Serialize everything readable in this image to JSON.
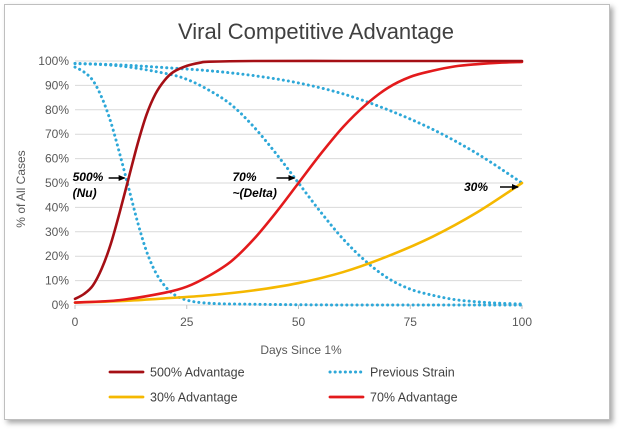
{
  "chart_data": {
    "type": "line",
    "title": "Viral Competitive Advantage",
    "xlabel": "Days Since 1%",
    "ylabel": "% of All Cases",
    "xlim": [
      0,
      100
    ],
    "ylim": [
      0,
      100
    ],
    "x_ticks": [
      0,
      25,
      50,
      75,
      100
    ],
    "x_tick_labels": [
      "0",
      "25",
      "50",
      "75",
      "100"
    ],
    "y_ticks": [
      0,
      10,
      20,
      30,
      40,
      50,
      60,
      70,
      80,
      90,
      100
    ],
    "y_tick_labels": [
      "0%",
      "10%",
      "20%",
      "30%",
      "40%",
      "50%",
      "60%",
      "70%",
      "80%",
      "90%",
      "100%"
    ],
    "grid": "horizontal",
    "legend_position": "bottom",
    "series": [
      {
        "name": "500% Advantage",
        "color": "#a50f15",
        "style": "solid",
        "x": [
          0,
          2,
          4,
          6,
          8,
          10,
          12,
          14,
          16,
          18,
          20,
          22,
          25,
          28,
          30,
          40,
          60,
          80,
          100
        ],
        "y": [
          2.5,
          4.5,
          8,
          15,
          25,
          38,
          52,
          66,
          78,
          86.5,
          92,
          95.5,
          98,
          99.3,
          99.7,
          100,
          100,
          100,
          100
        ]
      },
      {
        "name": "Previous Strain",
        "color": "#2ea8d8",
        "style": "dotted",
        "x": [
          0,
          2,
          4,
          6,
          8,
          10,
          12,
          14,
          16,
          18,
          20,
          22,
          25,
          30,
          40,
          60,
          80,
          100
        ],
        "y": [
          97.5,
          95.5,
          92,
          85,
          75,
          62,
          48,
          34,
          22,
          13.5,
          8,
          4.5,
          2,
          0.7,
          0.3,
          0,
          0,
          0
        ]
      },
      {
        "name": "Previous Strain",
        "color": "#2ea8d8",
        "style": "dotted",
        "x": [
          0,
          10,
          20,
          25,
          30,
          35,
          40,
          45,
          50,
          55,
          60,
          65,
          70,
          75,
          80,
          85,
          90,
          95,
          100
        ],
        "y": [
          99,
          98,
          95,
          92.5,
          88,
          82,
          73,
          62,
          50,
          38,
          27,
          18,
          11,
          6.5,
          4,
          2.2,
          1.3,
          0.7,
          0.4
        ]
      },
      {
        "name": "Previous Strain",
        "color": "#2ea8d8",
        "style": "dotted",
        "x": [
          0,
          10,
          20,
          30,
          40,
          50,
          60,
          70,
          80,
          90,
          100
        ],
        "y": [
          99,
          98.4,
          97.3,
          96,
          94,
          91,
          86.5,
          80,
          72,
          62,
          50
        ]
      },
      {
        "name": "70% Advantage",
        "color": "#e31a1c",
        "style": "solid",
        "x": [
          0,
          10,
          20,
          25,
          30,
          35,
          40,
          45,
          50,
          55,
          60,
          65,
          70,
          75,
          80,
          85,
          90,
          95,
          100
        ],
        "y": [
          1,
          2,
          5,
          7.5,
          12,
          18,
          27,
          38,
          50,
          62,
          73,
          82,
          89,
          93.5,
          96,
          97.8,
          98.7,
          99.3,
          99.6
        ]
      },
      {
        "name": "30% Advantage",
        "color": "#f5b800",
        "style": "solid",
        "x": [
          0,
          10,
          20,
          30,
          40,
          50,
          60,
          70,
          80,
          90,
          100
        ],
        "y": [
          1,
          1.6,
          2.7,
          4,
          6,
          9,
          13.5,
          20,
          28,
          38,
          50
        ]
      }
    ],
    "legend": [
      {
        "label": "500% Advantage",
        "color": "#a50f15",
        "style": "solid"
      },
      {
        "label": "Previous Strain",
        "color": "#2ea8d8",
        "style": "dotted"
      },
      {
        "label": "30% Advantage",
        "color": "#f5b800",
        "style": "solid"
      },
      {
        "label": "70% Advantage",
        "color": "#e31a1c",
        "style": "solid"
      }
    ],
    "annotations": [
      {
        "lines": [
          "500%",
          "(Nu)"
        ],
        "x": 12,
        "y": 50
      },
      {
        "lines": [
          "70%",
          "~(Delta)"
        ],
        "x": 50,
        "y": 50
      },
      {
        "lines": [
          "30%"
        ],
        "x": 100,
        "y": 50
      }
    ]
  }
}
